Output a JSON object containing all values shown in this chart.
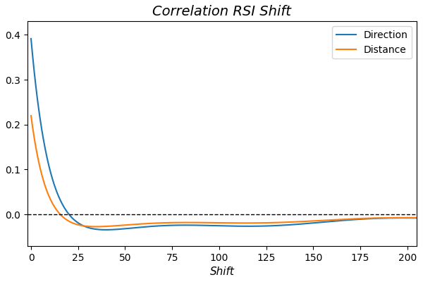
{
  "title": "Correlation RSI Shift",
  "xlabel": "Shift",
  "ylabel": "",
  "xlim": [
    -2,
    205
  ],
  "ylim": [
    -0.07,
    0.43
  ],
  "yticks": [
    0.0,
    0.1,
    0.2,
    0.3,
    0.4
  ],
  "xticks": [
    0,
    25,
    50,
    75,
    100,
    125,
    150,
    175,
    200
  ],
  "direction_color": "#1f77b4",
  "distance_color": "#ff7f0e",
  "hline_color": "black",
  "hline_style": "--",
  "legend_labels": [
    "Direction",
    "Distance"
  ],
  "background_color": "#ffffff",
  "title_fontsize": 14,
  "title_style": "italic"
}
